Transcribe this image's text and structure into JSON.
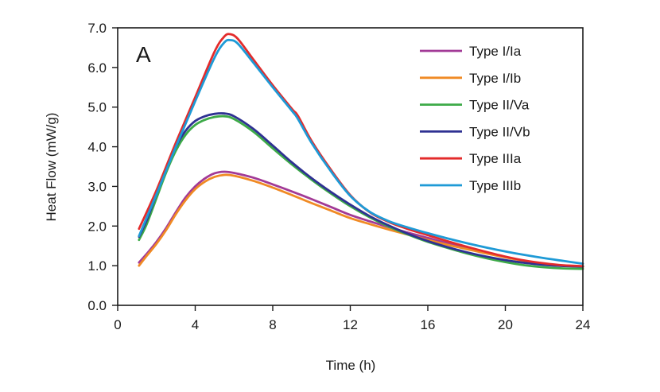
{
  "chart_data": {
    "type": "line",
    "panel_label": "A",
    "xlabel": "Time (h)",
    "ylabel": "Heat Flow (mW/g)",
    "xlim": [
      0,
      24
    ],
    "ylim": [
      0,
      7
    ],
    "xticks": [
      0,
      4,
      8,
      12,
      16,
      20,
      24
    ],
    "xtick_labels": [
      "0",
      "4",
      "8",
      "12",
      "16",
      "20",
      "24"
    ],
    "yticks": [
      0,
      1,
      2,
      3,
      4,
      5,
      6,
      7
    ],
    "ytick_labels": [
      "0.0",
      "1.0",
      "2.0",
      "3.0",
      "4.0",
      "5.0",
      "6.0",
      "7.0"
    ],
    "grid": false,
    "legend_position": "top-right",
    "series": [
      {
        "name": "Type I/Ia",
        "color": "#a23a96",
        "x": [
          1.1,
          1.5,
          2,
          2.5,
          3,
          3.5,
          4,
          4.5,
          5,
          5.5,
          6,
          7,
          8,
          9,
          10,
          11,
          12,
          13,
          14,
          15,
          16,
          17,
          18,
          19,
          20,
          21,
          22,
          23,
          24
        ],
        "y": [
          1.08,
          1.3,
          1.6,
          1.95,
          2.35,
          2.72,
          3.0,
          3.2,
          3.33,
          3.37,
          3.34,
          3.22,
          3.05,
          2.87,
          2.68,
          2.48,
          2.28,
          2.12,
          1.97,
          1.83,
          1.7,
          1.57,
          1.45,
          1.33,
          1.22,
          1.12,
          1.05,
          1.0,
          0.98
        ]
      },
      {
        "name": "Type I/Ib",
        "color": "#f08a24",
        "x": [
          1.1,
          1.5,
          2,
          2.5,
          3,
          3.5,
          4,
          4.5,
          5,
          5.5,
          6,
          7,
          8,
          9,
          10,
          11,
          12,
          13,
          14,
          15,
          16,
          17,
          18,
          19,
          20,
          21,
          22,
          23,
          24
        ],
        "y": [
          1.0,
          1.25,
          1.55,
          1.9,
          2.3,
          2.65,
          2.93,
          3.12,
          3.24,
          3.29,
          3.27,
          3.14,
          2.97,
          2.78,
          2.58,
          2.39,
          2.2,
          2.05,
          1.91,
          1.78,
          1.65,
          1.53,
          1.42,
          1.31,
          1.21,
          1.12,
          1.05,
          1.0,
          0.97
        ]
      },
      {
        "name": "Type II/Va",
        "color": "#3daa48",
        "x": [
          1.1,
          1.5,
          2,
          2.5,
          3,
          3.5,
          4,
          4.5,
          5,
          5.5,
          6,
          7,
          8,
          9,
          10,
          11,
          12,
          13,
          14,
          15,
          16,
          17,
          18,
          19,
          20,
          21,
          22,
          23,
          24
        ],
        "y": [
          1.65,
          2.05,
          2.7,
          3.35,
          3.9,
          4.3,
          4.55,
          4.68,
          4.75,
          4.77,
          4.7,
          4.38,
          3.96,
          3.55,
          3.17,
          2.82,
          2.5,
          2.22,
          1.98,
          1.78,
          1.6,
          1.45,
          1.31,
          1.19,
          1.09,
          1.01,
          0.96,
          0.93,
          0.92
        ]
      },
      {
        "name": "Type II/Vb",
        "color": "#2e3192",
        "x": [
          1.1,
          1.5,
          2,
          2.5,
          3,
          3.5,
          4,
          4.5,
          5,
          5.5,
          6,
          7,
          8,
          9,
          10,
          11,
          12,
          13,
          14,
          15,
          16,
          17,
          18,
          19,
          20,
          21,
          22,
          23,
          24
        ],
        "y": [
          1.73,
          2.15,
          2.8,
          3.45,
          4.0,
          4.4,
          4.65,
          4.77,
          4.83,
          4.84,
          4.77,
          4.45,
          4.03,
          3.6,
          3.21,
          2.86,
          2.54,
          2.25,
          2.01,
          1.8,
          1.62,
          1.47,
          1.34,
          1.23,
          1.14,
          1.07,
          1.02,
          0.99,
          0.98
        ]
      },
      {
        "name": "Type IIIa",
        "color": "#e32b2b",
        "x": [
          1.1,
          2,
          3,
          4,
          5,
          5.5,
          5.8,
          6.2,
          7,
          8,
          9,
          9.3,
          10,
          11,
          12,
          13,
          14,
          15,
          16,
          17,
          18,
          19,
          20,
          21,
          22,
          23,
          24
        ],
        "y": [
          1.93,
          2.9,
          4.1,
          5.25,
          6.4,
          6.78,
          6.84,
          6.72,
          6.2,
          5.55,
          4.95,
          4.78,
          4.15,
          3.42,
          2.78,
          2.35,
          2.1,
          1.92,
          1.77,
          1.62,
          1.48,
          1.35,
          1.23,
          1.13,
          1.06,
          1.01,
          0.99
        ]
      },
      {
        "name": "Type IIIb",
        "color": "#1e9ad6",
        "x": [
          1.1,
          2,
          3,
          4,
          5,
          5.5,
          5.8,
          6.2,
          7,
          8,
          9,
          9.3,
          10,
          11,
          12,
          13,
          14,
          15,
          16,
          17,
          18,
          19,
          20,
          21,
          22,
          23,
          24
        ],
        "y": [
          1.75,
          2.8,
          4.0,
          5.15,
          6.25,
          6.63,
          6.69,
          6.6,
          6.12,
          5.5,
          4.9,
          4.7,
          4.1,
          3.38,
          2.76,
          2.36,
          2.12,
          1.96,
          1.82,
          1.69,
          1.57,
          1.46,
          1.36,
          1.27,
          1.19,
          1.12,
          1.05
        ]
      }
    ]
  }
}
